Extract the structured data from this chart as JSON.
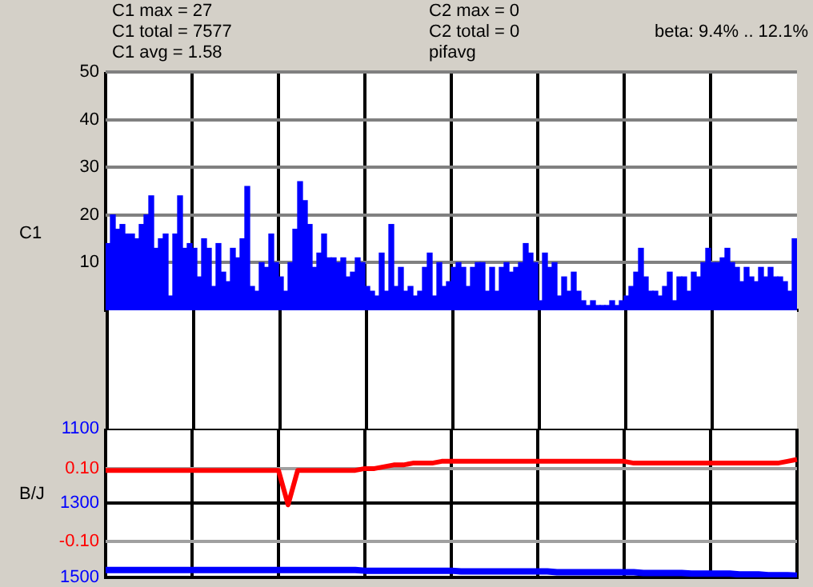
{
  "chart_data": [
    {
      "type": "bar",
      "ylabel": "C1",
      "color": "#0000ff",
      "ylim": [
        0,
        50
      ],
      "yticks": [
        10,
        20,
        30,
        40,
        50
      ],
      "grid": true,
      "annotations": [
        "C1 max = 27",
        "C1 total = 7577",
        "C1 avg = 1.58",
        "C2 max = 0",
        "C2 total = 0",
        "pifavg",
        "beta: 9.4% .. 12.1%"
      ],
      "categories": [
        null,
        null,
        null,
        null,
        null,
        null,
        null,
        null,
        null,
        null,
        null,
        null,
        null,
        null,
        null,
        null,
        null,
        null,
        null,
        null,
        null,
        null,
        null,
        null,
        null,
        null,
        null,
        null,
        null,
        null,
        null,
        null,
        null,
        null,
        null,
        null,
        null,
        null,
        null,
        null,
        null,
        null,
        null,
        null,
        null,
        null,
        null,
        null,
        null,
        null,
        null,
        null,
        null,
        null,
        null,
        null,
        null,
        null,
        null,
        null,
        null,
        null,
        null,
        null,
        null,
        null,
        null,
        null,
        null,
        null,
        null,
        null,
        null,
        null,
        null,
        null,
        null,
        null,
        null,
        null,
        null,
        null,
        null,
        null,
        null,
        null,
        null,
        null,
        null,
        null,
        null,
        null,
        null,
        null,
        null,
        null,
        null,
        null,
        null,
        null,
        null,
        null,
        null,
        null,
        null,
        null,
        null,
        null,
        null,
        null,
        null,
        null,
        null,
        null,
        null,
        null,
        null,
        null,
        null,
        null,
        null,
        null,
        null,
        null,
        null,
        null,
        null,
        null,
        null,
        null,
        null,
        null,
        null,
        null,
        null,
        null,
        null,
        null,
        null,
        null,
        null,
        null,
        null,
        null
      ],
      "values": [
        14,
        20,
        17,
        18,
        16,
        16,
        15,
        18,
        20,
        24,
        13,
        15,
        16,
        3,
        16,
        24,
        13,
        14,
        13,
        7,
        15,
        13,
        5,
        14,
        8,
        6,
        13,
        11,
        15,
        26,
        5,
        4,
        10,
        9,
        16,
        10,
        7,
        4,
        10,
        17,
        27,
        23,
        18,
        9,
        12,
        16,
        11,
        11,
        10,
        11,
        7,
        8,
        11,
        10,
        5,
        4,
        3,
        12,
        4,
        18,
        5,
        9,
        4,
        5,
        3,
        4,
        9,
        12,
        3,
        10,
        5,
        6,
        9,
        10,
        9,
        5,
        9,
        10,
        10,
        4,
        9,
        4,
        9,
        10,
        8,
        9,
        10,
        14,
        12,
        10,
        2,
        12,
        9,
        10,
        3,
        7,
        4,
        8,
        4,
        2,
        1,
        2,
        1,
        1,
        1,
        2,
        1,
        2,
        3,
        5,
        8,
        13,
        7,
        4,
        4,
        3,
        5,
        8,
        2,
        7,
        7,
        4,
        8,
        7,
        10,
        13,
        10,
        10,
        11,
        13,
        10,
        9,
        6,
        9,
        7,
        6,
        9,
        7,
        9,
        7,
        7,
        6,
        4,
        15
      ]
    },
    {
      "type": "line",
      "ylabel": "B/J",
      "grid": true,
      "ylim": [
        -0.2,
        0.21
      ],
      "yticks": [
        {
          "value": 0.1,
          "label": "0.10"
        },
        {
          "value": -0.1,
          "label": "-0.10"
        }
      ],
      "y2lim": [
        1500,
        1100
      ],
      "y2ticks": [
        1100,
        1300,
        1500
      ],
      "categories": [
        null,
        null,
        null,
        null,
        null,
        null,
        null,
        null,
        null,
        null,
        null,
        null,
        null,
        null,
        null,
        null,
        null,
        null,
        null,
        null,
        null,
        null,
        null,
        null,
        null,
        null,
        null,
        null,
        null,
        null,
        null,
        null,
        null,
        null,
        null,
        null,
        null,
        null,
        null,
        null,
        null,
        null,
        null,
        null,
        null,
        null,
        null,
        null,
        null,
        null,
        null,
        null,
        null,
        null,
        null,
        null,
        null,
        null,
        null,
        null,
        null,
        null,
        null,
        null,
        null,
        null,
        null,
        null,
        null,
        null,
        null,
        null,
        null
      ],
      "series": [
        {
          "color": "#ff0000",
          "axis": "y",
          "values": [
            0.095,
            0.095,
            0.095,
            0.095,
            0.095,
            0.095,
            0.095,
            0.095,
            0.095,
            0.095,
            0.095,
            0.095,
            0.095,
            0.095,
            0.095,
            0.095,
            0.095,
            0.095,
            0.095,
            0.0,
            0.095,
            0.095,
            0.095,
            0.095,
            0.095,
            0.095,
            0.095,
            0.1,
            0.1,
            0.105,
            0.11,
            0.11,
            0.115,
            0.115,
            0.115,
            0.12,
            0.12,
            0.12,
            0.12,
            0.12,
            0.12,
            0.12,
            0.12,
            0.12,
            0.12,
            0.12,
            0.12,
            0.12,
            0.12,
            0.12,
            0.12,
            0.12,
            0.12,
            0.12,
            0.12,
            0.115,
            0.115,
            0.115,
            0.115,
            0.115,
            0.115,
            0.115,
            0.115,
            0.115,
            0.115,
            0.115,
            0.115,
            0.115,
            0.115,
            0.115,
            0.115,
            0.12,
            0.125
          ]
        },
        {
          "color": "#0000ff",
          "axis": "y2",
          "values": [
            1480,
            1480,
            1480,
            1480,
            1480,
            1480,
            1480,
            1480,
            1480,
            1480,
            1480,
            1480,
            1480,
            1480,
            1480,
            1480,
            1480,
            1480,
            1480,
            1480,
            1480,
            1480,
            1480,
            1480,
            1480,
            1480,
            1480,
            1482,
            1482,
            1482,
            1482,
            1482,
            1482,
            1482,
            1482,
            1482,
            1482,
            1484,
            1484,
            1484,
            1484,
            1484,
            1484,
            1484,
            1484,
            1484,
            1484,
            1486,
            1486,
            1486,
            1486,
            1486,
            1486,
            1486,
            1486,
            1486,
            1488,
            1488,
            1488,
            1488,
            1488,
            1490,
            1490,
            1490,
            1490,
            1490,
            1492,
            1492,
            1492,
            1494,
            1494,
            1494,
            1495
          ]
        }
      ]
    }
  ]
}
